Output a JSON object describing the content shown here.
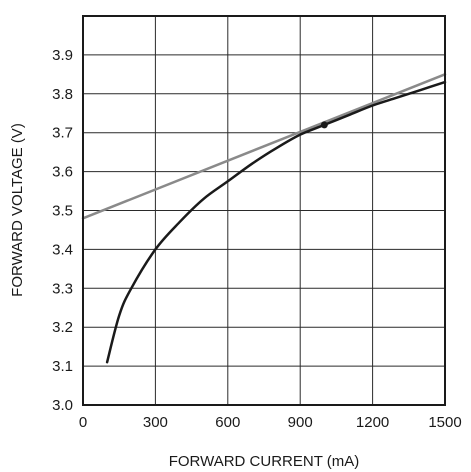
{
  "chart_data": {
    "type": "line",
    "xlabel": "FORWARD CURRENT (mA)",
    "ylabel": "FORWARD VOLTAGE (V)",
    "xlim": [
      0,
      1500
    ],
    "ylim": [
      3.0,
      4.0
    ],
    "x_ticks": [
      "0",
      "300",
      "600",
      "900",
      "1200",
      "1500"
    ],
    "y_ticks": [
      "3.0",
      "3.1",
      "3.2",
      "3.3",
      "3.4",
      "3.5",
      "3.6",
      "3.7",
      "3.8",
      "3.9"
    ],
    "x_grid_values": [
      0,
      300,
      600,
      900,
      1200,
      1500
    ],
    "y_grid_values": [
      3.0,
      3.1,
      3.2,
      3.3,
      3.4,
      3.5,
      3.6,
      3.7,
      3.8,
      3.9,
      4.0
    ],
    "grid": true,
    "series": [
      {
        "style": "curve",
        "color": "#1a1a1a",
        "x": [
          100,
          150,
          200,
          300,
          400,
          500,
          600,
          700,
          800,
          900,
          1000,
          1100,
          1200,
          1300,
          1400,
          1500
        ],
        "y": [
          3.11,
          3.23,
          3.3,
          3.4,
          3.47,
          3.53,
          3.575,
          3.62,
          3.66,
          3.695,
          3.72,
          3.745,
          3.77,
          3.79,
          3.81,
          3.83
        ]
      },
      {
        "style": "tangent-line",
        "color": "#8a8a8a",
        "x": [
          0,
          1500
        ],
        "y": [
          3.48,
          3.85
        ]
      }
    ],
    "points": [
      {
        "x": 1000,
        "y": 3.72
      }
    ]
  }
}
